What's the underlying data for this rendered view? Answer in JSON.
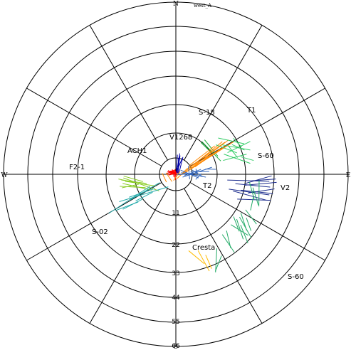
{
  "corner_label": "west_A",
  "chart_data": {
    "type": "scatter",
    "projection": "polar, north up, radius increasing outward from center",
    "title": "",
    "compass": {
      "north": "N",
      "south": "S",
      "east": "E",
      "west": "W"
    },
    "radial_ticks": [
      "11",
      "22",
      "33",
      "44",
      "55",
      "66"
    ],
    "rmax": 66,
    "grid": true,
    "spokes_every_deg": 30,
    "series": [
      {
        "name": "ACH1",
        "color": "#ff0000",
        "segments": [
          [
            -2.4,
            0.2,
            -0.4,
            0.8
          ],
          [
            -3.1,
            0.5,
            -0.7,
            1.3
          ],
          [
            -2.7,
            -0.3,
            0.1,
            0.4
          ],
          [
            -3.3,
            0.9,
            -1.1,
            1.4
          ],
          [
            -2.1,
            0.6,
            0.3,
            0.9
          ],
          [
            -2.9,
            -0.1,
            -0.5,
            0.6
          ],
          [
            -3.5,
            0.3,
            -1.6,
            0.9
          ],
          [
            -2.6,
            0.8,
            -0.2,
            0.5
          ],
          [
            -1.4,
            1.9,
            -0.4,
            -1.0
          ],
          [
            -1.0,
            1.6,
            -0.1,
            -2.2
          ],
          [
            -0.3,
            2.0,
            0.0,
            -1.8
          ],
          [
            -1.9,
            1.1,
            0.5,
            0.4
          ],
          [
            -2.2,
            1.3,
            0.2,
            -0.3
          ],
          [
            -0.8,
            1.7,
            0.6,
            0.6
          ],
          [
            -2.5,
            1.1,
            -0.9,
            0.1
          ],
          [
            -1.6,
            0.4,
            0.7,
            1.2
          ],
          [
            -3.0,
            1.5,
            -1.3,
            0.4
          ],
          [
            -1.1,
            0.9,
            0.4,
            0.0
          ],
          [
            -0.5,
            0.7,
            -0.9,
            -0.9
          ],
          [
            -1.2,
            1.3,
            0.9,
            0.8
          ]
        ]
      },
      {
        "name": "V1268",
        "color": "#0000aa",
        "segments": [
          [
            0.3,
            0.6,
            1.5,
            8.0
          ],
          [
            0.7,
            0.4,
            1.6,
            7.2
          ],
          [
            0.2,
            0.8,
            0.6,
            7.5
          ],
          [
            1.2,
            0.5,
            2.7,
            6.6
          ],
          [
            0.9,
            0.0,
            1.0,
            6.2
          ],
          [
            0.4,
            1.2,
            2.5,
            6.3
          ]
        ]
      },
      {
        "name": "S-18",
        "color": "#11aa33",
        "segments": [
          [
            10.0,
            12.5,
            17.2,
            5.1
          ],
          [
            11.0,
            13.2,
            16.1,
            6.9
          ],
          [
            9.6,
            12.2,
            13.6,
            8.3
          ]
        ]
      },
      {
        "name": "T1",
        "color": "#ff8800",
        "segments": [
          [
            1.5,
            -0.6,
            17.8,
            12.5
          ],
          [
            3.2,
            0.3,
            20.2,
            13.2
          ],
          [
            4.5,
            1.2,
            22.3,
            12.6
          ],
          [
            2.2,
            -0.2,
            18.7,
            10.7
          ],
          [
            6.0,
            3.1,
            20.8,
            11.6
          ],
          [
            7.3,
            2.8,
            17.1,
            9.8
          ],
          [
            3.9,
            1.8,
            12.7,
            8.0
          ],
          [
            0.5,
            -1.6,
            4.2,
            2.1
          ],
          [
            5.2,
            3.4,
            14.9,
            10.9
          ],
          [
            -1.5,
            -2.8,
            -3.7,
            0.6
          ],
          [
            -0.9,
            -2.4,
            1.6,
            1.1
          ],
          [
            -3.6,
            -3.0,
            -5.2,
            0.4
          ],
          [
            9.4,
            5.7,
            18.8,
            12.3
          ]
        ]
      },
      {
        "name": "S-60",
        "color": "#33cc66",
        "segments": [
          [
            17.6,
            11.3,
            28.5,
            9.3
          ],
          [
            18.4,
            7.7,
            28.5,
            4.2
          ],
          [
            20.1,
            10.9,
            23.6,
            6.4
          ],
          [
            16.2,
            13.9,
            26.2,
            11.7
          ],
          [
            19.8,
            8.3,
            28.5,
            12.6
          ],
          [
            15.3,
            11.3,
            23.4,
            8.2
          ],
          [
            21.5,
            11.4,
            26.3,
            9.3
          ],
          [
            22.0,
            13.8,
            25.2,
            10.4
          ],
          [
            18.1,
            5.3,
            27.1,
            7.7
          ],
          [
            24.9,
            6.7,
            29.8,
            5.3
          ]
        ]
      },
      {
        "name": "T2",
        "color": "#3366bb",
        "segments": [
          [
            0.7,
            -0.2,
            8.3,
            0.5
          ],
          [
            2.0,
            0.6,
            11.5,
            -1.1
          ],
          [
            3.3,
            -0.5,
            9.6,
            1.9
          ],
          [
            1.8,
            1.6,
            8.7,
            -1.4
          ],
          [
            5.6,
            0.9,
            12.8,
            1.1
          ],
          [
            5.3,
            -1.9,
            4.8,
            3.2
          ],
          [
            8.1,
            -0.5,
            7.7,
            2.1
          ],
          [
            9.7,
            0.3,
            7.6,
            -2.0
          ],
          [
            2.6,
            -1.1,
            13.8,
            2.7
          ],
          [
            6.3,
            1.6,
            10.3,
            -0.9
          ],
          [
            11.3,
            2.0,
            15.3,
            1.9
          ]
        ]
      },
      {
        "name": "V2",
        "color": "#1a2a8c",
        "segments": [
          [
            19.7,
            -2.2,
            35.8,
            -2.7
          ],
          [
            22.8,
            -3.6,
            36.1,
            -4.9
          ],
          [
            24.9,
            -6.1,
            37.2,
            -7.4
          ],
          [
            20.3,
            -5.7,
            35.8,
            -7.9
          ],
          [
            26.6,
            -3.5,
            36.7,
            -0.6
          ],
          [
            27.6,
            -7.2,
            37.8,
            -5.6
          ],
          [
            23.5,
            -9.5,
            36.3,
            -10.0
          ],
          [
            26.4,
            -4.2,
            38.6,
            -3.1
          ],
          [
            29.1,
            -2.5,
            38.3,
            -1.8
          ],
          [
            21.9,
            -6.4,
            34.6,
            -9.9
          ]
        ]
      },
      {
        "name": "S-60 ",
        "color": "#22aa66",
        "segments": [
          [
            28.2,
            -3.0,
            30.0,
            -9.5
          ],
          [
            29.5,
            -5.1,
            31.6,
            -11.8
          ],
          [
            31.9,
            -2.4,
            31.8,
            -12.3
          ],
          [
            26.7,
            -13.6,
            30.9,
            -19.1
          ],
          [
            24.4,
            -16.4,
            28.8,
            -24.2
          ],
          [
            27.0,
            -16.7,
            28.8,
            -21.7
          ],
          [
            24.9,
            -14.8,
            27.1,
            -21.5
          ],
          [
            23.3,
            -17.2,
            25.8,
            -24.9
          ],
          [
            24.8,
            -19.4,
            27.6,
            -26.4
          ],
          [
            19.4,
            -21.6,
            21.0,
            -28.3
          ],
          [
            17.8,
            -23.1,
            22.4,
            -29.9
          ],
          [
            22.1,
            -16.2,
            24.3,
            -21.9
          ],
          [
            15.7,
            -28.4,
            15.2,
            -37.6
          ],
          [
            17.5,
            -31.2,
            15.1,
            -37.2
          ],
          [
            28.6,
            -13.8,
            29.8,
            -8.2
          ],
          [
            21.1,
            -19.3,
            27.7,
            -23.4
          ]
        ]
      },
      {
        "name": "Cresta",
        "color": "#ffbb00",
        "segments": [
          [
            4.9,
            -29.3,
            10.9,
            -34.3
          ],
          [
            8.5,
            -29.2,
            12.8,
            -37.1
          ],
          [
            11.4,
            -30.9,
            13.7,
            -36.2
          ]
        ]
      },
      {
        "name": "F2-1",
        "color": "#88cc22",
        "segments": [
          [
            -20.1,
            -1.4,
            -6.4,
            -6.4
          ],
          [
            -20.9,
            -2.2,
            -11.2,
            -3.5
          ],
          [
            -20.4,
            -3.5,
            -9.2,
            -6.1
          ],
          [
            -20.0,
            -0.7,
            -12.6,
            -2.8
          ],
          [
            -22.0,
            -1.8,
            -13.8,
            -3.6
          ],
          [
            -20.7,
            -5.2,
            -14.2,
            -3.8
          ],
          [
            -21.5,
            -4.6,
            -11.6,
            -5.1
          ],
          [
            -19.4,
            -2.7,
            -7.8,
            -4.5
          ]
        ]
      },
      {
        "name": "S-02",
        "color": "#22aaaa",
        "segments": [
          [
            -21.7,
            -10.5,
            -2.9,
            -4.8
          ],
          [
            -17.9,
            -8.8,
            -7.9,
            -5.4
          ],
          [
            -17.6,
            -9.9,
            -6.2,
            -3.2
          ],
          [
            -20.3,
            -13.4,
            -12.9,
            -9.6
          ],
          [
            -25.7,
            -15.0,
            -9.9,
            -4.6
          ],
          [
            -15.4,
            -10.2,
            -8.9,
            -6.9
          ],
          [
            -23.1,
            -13.9,
            -14.4,
            -10.6
          ]
        ]
      }
    ]
  },
  "labels": [
    {
      "text": "S-18",
      "color": "#11aa33"
    },
    {
      "text": "T1",
      "color": "#cc0000"
    },
    {
      "text": "V1268",
      "color": "#0000aa"
    },
    {
      "text": "S-60",
      "color": "#33cc33"
    },
    {
      "text": "ACH1",
      "color": "#ee0000"
    },
    {
      "text": "F2-1",
      "color": "#88cc00"
    },
    {
      "text": "T2",
      "color": "#0000aa"
    },
    {
      "text": "V2",
      "color": "#0000aa"
    },
    {
      "text": "S-02",
      "color": "#33aaaa"
    },
    {
      "text": "Cresta",
      "color": "#ffbb00"
    },
    {
      "text": "S-60",
      "color": "#33cc33"
    }
  ]
}
